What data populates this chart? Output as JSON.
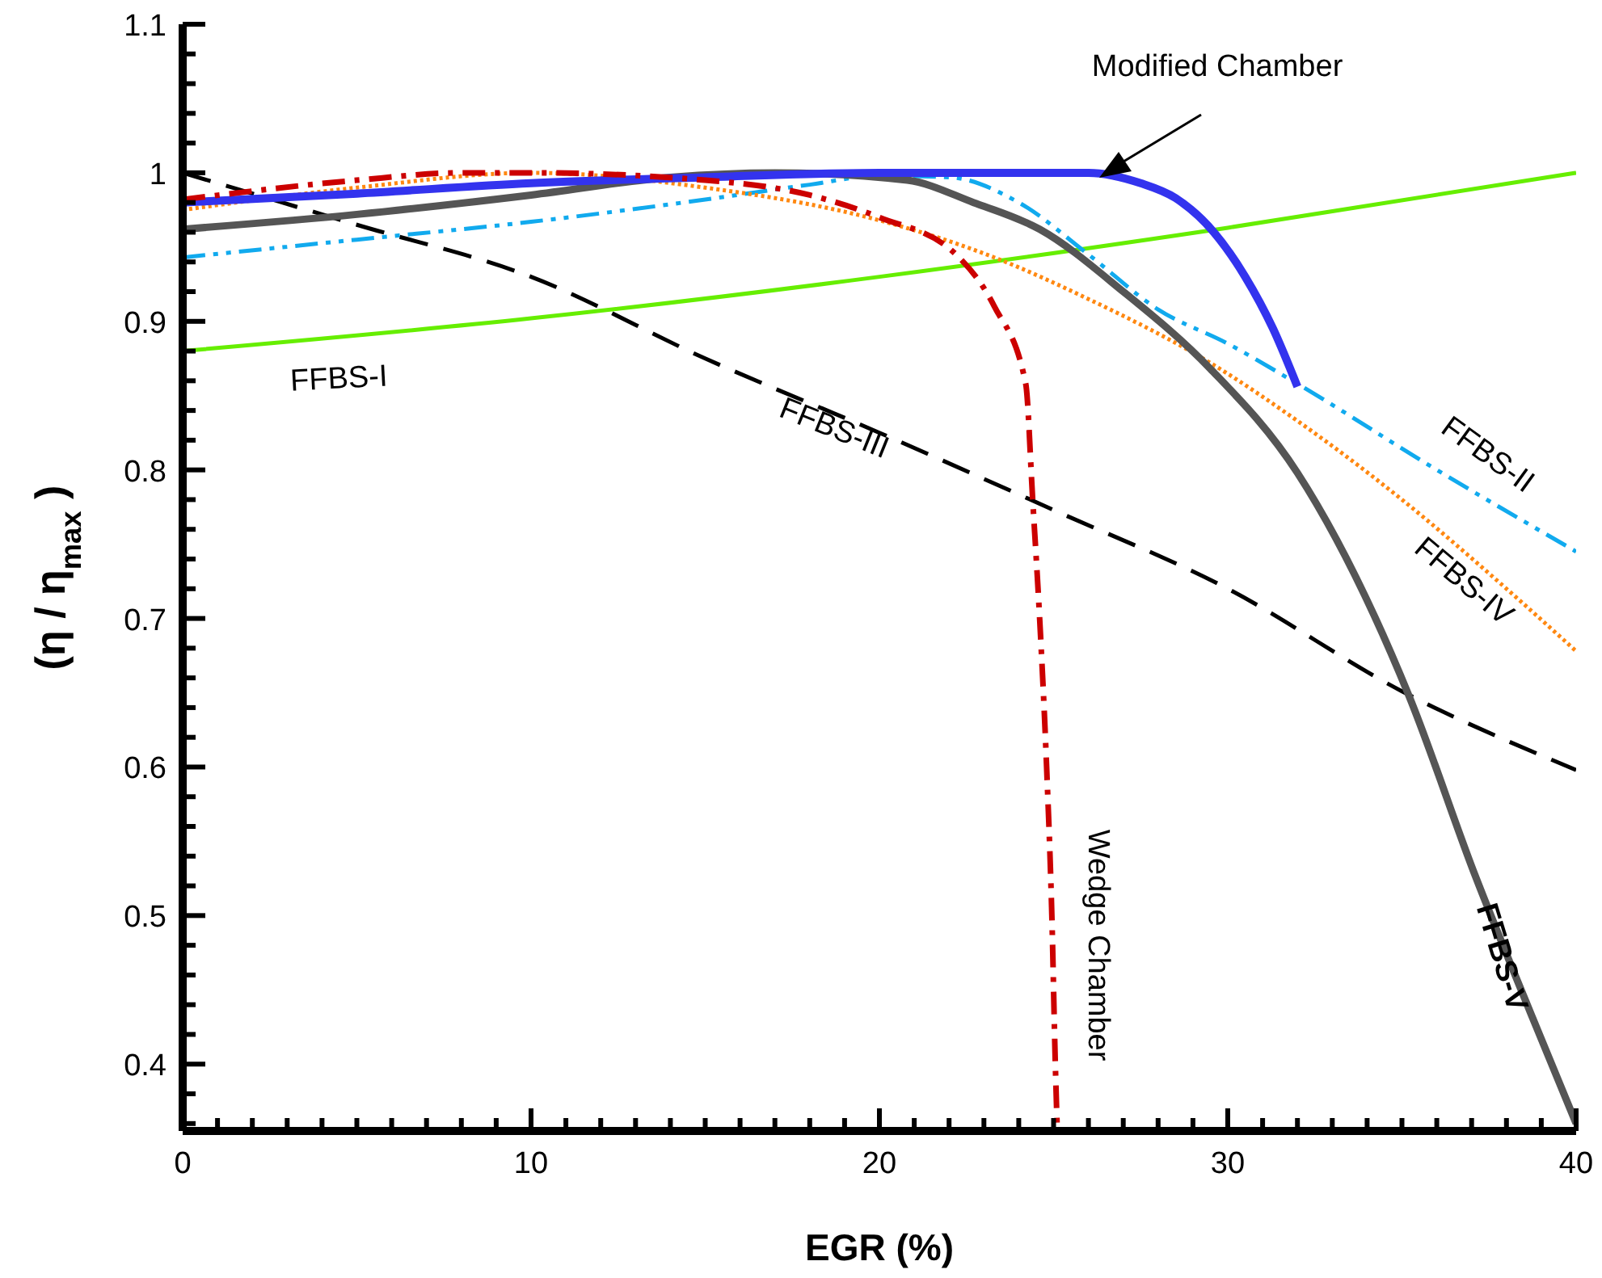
{
  "chart_data": {
    "type": "line",
    "xlabel": "EGR (%)",
    "ylabel": "(η / η$_{max}$ )",
    "xlim": [
      0,
      40
    ],
    "ylim": [
      0.355,
      1.1
    ],
    "xticks": [
      0,
      {
        "value": 1,
        "label": null
      },
      {
        "value": 2,
        "label": null
      },
      {
        "value": 3,
        "label": null
      },
      {
        "value": 4,
        "label": null
      },
      {
        "value": 5,
        "label": null
      },
      {
        "value": 6,
        "label": null
      },
      {
        "value": 7,
        "label": null
      },
      {
        "value": 8,
        "label": null
      },
      {
        "value": 9,
        "label": null
      },
      10,
      {
        "value": 11,
        "label": null
      },
      {
        "value": 12,
        "label": null
      },
      {
        "value": 13,
        "label": null
      },
      {
        "value": 14,
        "label": null
      },
      {
        "value": 15,
        "label": null
      },
      {
        "value": 16,
        "label": null
      },
      {
        "value": 17,
        "label": null
      },
      {
        "value": 18,
        "label": null
      },
      {
        "value": 19,
        "label": null
      },
      20,
      {
        "value": 21,
        "label": null
      },
      {
        "value": 22,
        "label": null
      },
      {
        "value": 23,
        "label": null
      },
      {
        "value": 24,
        "label": null
      },
      {
        "value": 25,
        "label": null
      },
      {
        "value": 26,
        "label": null
      },
      {
        "value": 27,
        "label": null
      },
      {
        "value": 28,
        "label": null
      },
      {
        "value": 29,
        "label": null
      },
      30,
      {
        "value": 31,
        "label": null
      },
      {
        "value": 32,
        "label": null
      },
      {
        "value": 33,
        "label": null
      },
      {
        "value": 34,
        "label": null
      },
      {
        "value": 35,
        "label": null
      },
      {
        "value": 36,
        "label": null
      },
      {
        "value": 37,
        "label": null
      },
      {
        "value": 38,
        "label": null
      },
      {
        "value": 39,
        "label": null
      },
      40
    ],
    "yticks": [
      {
        "value": 0.36,
        "label": null
      },
      {
        "value": 0.38,
        "label": null
      },
      0.4,
      {
        "value": 0.42,
        "label": null
      },
      {
        "value": 0.44,
        "label": null
      },
      {
        "value": 0.46,
        "label": null
      },
      {
        "value": 0.48,
        "label": null
      },
      0.5,
      {
        "value": 0.52,
        "label": null
      },
      {
        "value": 0.54,
        "label": null
      },
      {
        "value": 0.56,
        "label": null
      },
      {
        "value": 0.58,
        "label": null
      },
      0.6,
      {
        "value": 0.62,
        "label": null
      },
      {
        "value": 0.64,
        "label": null
      },
      {
        "value": 0.66,
        "label": null
      },
      {
        "value": 0.68,
        "label": null
      },
      0.7,
      {
        "value": 0.72,
        "label": null
      },
      {
        "value": 0.74,
        "label": null
      },
      {
        "value": 0.76,
        "label": null
      },
      {
        "value": 0.78,
        "label": null
      },
      0.8,
      {
        "value": 0.82,
        "label": null
      },
      {
        "value": 0.84,
        "label": null
      },
      {
        "value": 0.86,
        "label": null
      },
      {
        "value": 0.88,
        "label": null
      },
      0.9,
      {
        "value": 0.92,
        "label": null
      },
      {
        "value": 0.94,
        "label": null
      },
      {
        "value": 0.96,
        "label": null
      },
      {
        "value": 0.98,
        "label": null
      },
      1,
      {
        "value": 1.02,
        "label": null
      },
      {
        "value": 1.04,
        "label": null
      },
      {
        "value": 1.06,
        "label": null
      },
      {
        "value": 1.08,
        "label": null
      },
      1.1
    ],
    "series": [
      {
        "name": "FFBS-I",
        "color": "#66ee00",
        "line_style": "solid",
        "x": [
          0,
          10,
          20,
          30,
          40
        ],
        "values": [
          0.88,
          0.902,
          0.93,
          0.963,
          1.0
        ]
      },
      {
        "name": "FFBS-II",
        "color": "#11aaee",
        "line_style": "dashdotdot",
        "x": [
          0,
          5,
          10,
          15,
          18,
          20,
          22,
          24,
          26,
          28,
          30,
          32,
          36,
          40
        ],
        "values": [
          0.943,
          0.955,
          0.967,
          0.982,
          0.992,
          0.998,
          0.997,
          0.98,
          0.945,
          0.908,
          0.885,
          0.858,
          0.8,
          0.745
        ]
      },
      {
        "name": "FFBS-III",
        "color": "#000000",
        "line_style": "dashed",
        "x": [
          0,
          5,
          10,
          15,
          20,
          25,
          30,
          35,
          40
        ],
        "values": [
          1.0,
          0.965,
          0.93,
          0.875,
          0.825,
          0.773,
          0.72,
          0.651,
          0.598
        ]
      },
      {
        "name": "FFBS-IV",
        "color": "#ff8811",
        "line_style": "dotted",
        "x": [
          0,
          5,
          10,
          15,
          20,
          23.3,
          26,
          29.5,
          32,
          35,
          38,
          40
        ],
        "values": [
          0.975,
          0.99,
          1.0,
          0.99,
          0.968,
          0.943,
          0.915,
          0.872,
          0.833,
          0.78,
          0.72,
          0.678
        ]
      },
      {
        "name": "FFBS-V",
        "color": "#555555",
        "line_style": "solid",
        "x": [
          0,
          5,
          10,
          14,
          17,
          20.8,
          22.7,
          24.6,
          27,
          29.5,
          32,
          35.2,
          37.1,
          38.7,
          40
        ],
        "values": [
          0.962,
          0.972,
          0.985,
          0.997,
          1.0,
          0.995,
          0.98,
          0.962,
          0.92,
          0.868,
          0.798,
          0.648,
          0.527,
          0.434,
          0.36
        ]
      },
      {
        "name": "Modified Chamber",
        "color": "#3333ee",
        "line_style": "solid",
        "x": [
          0,
          5,
          10,
          15,
          20,
          24,
          26,
          27.5,
          28.5,
          29.6,
          30.5,
          31.3,
          32
        ],
        "values": [
          0.98,
          0.986,
          0.993,
          0.997,
          1.0,
          1.0,
          1.0,
          0.993,
          0.983,
          0.96,
          0.93,
          0.895,
          0.856
        ]
      },
      {
        "name": "Wedge Chamber",
        "color": "#cc0000",
        "line_style": "dashdot",
        "x": [
          0,
          5,
          8,
          10,
          15,
          18,
          20,
          22.2,
          23.3,
          24.2,
          24.4,
          24.6,
          24.8,
          24.95,
          25.05,
          25.1
        ],
        "values": [
          0.982,
          0.995,
          1.0,
          1.0,
          0.995,
          0.985,
          0.97,
          0.945,
          0.91,
          0.858,
          0.78,
          0.7,
          0.6,
          0.5,
          0.4,
          0.36
        ]
      }
    ]
  }
}
